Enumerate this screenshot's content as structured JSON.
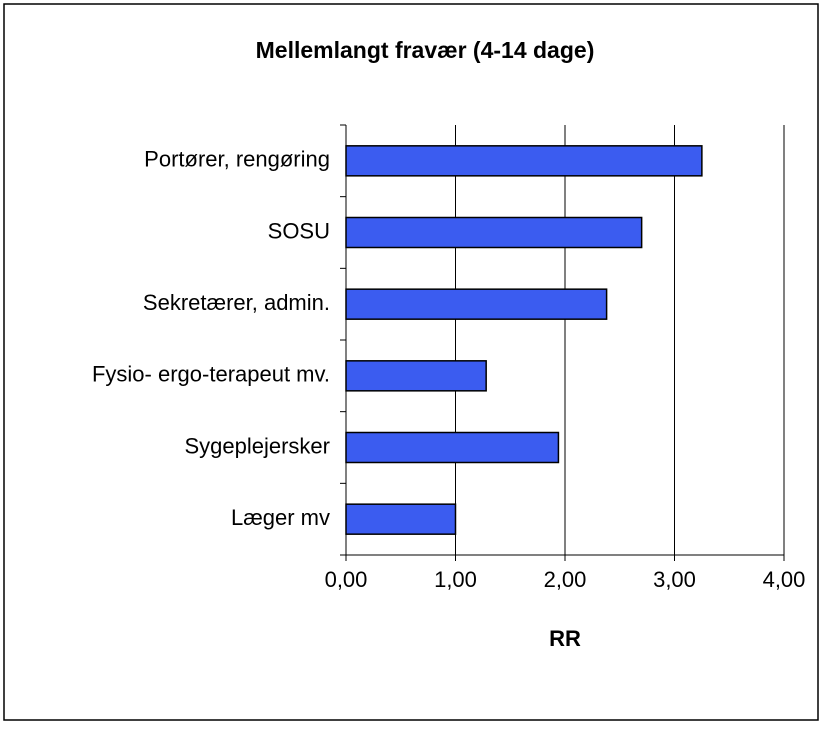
{
  "chart_data": {
    "type": "barh",
    "title": "Mellemlangt fravær (4-14 dage)",
    "x_label": "RR",
    "categories": [
      "Portører, rengøring",
      "SOSU",
      "Sekretærer, admin.",
      "Fysio- ergo-terapeut mv.",
      "Sygeplejersker",
      "Læger mv"
    ],
    "values": [
      3.25,
      2.7,
      2.38,
      1.28,
      1.94,
      1.0
    ],
    "color": "#3b5cf0",
    "xlim": [
      0,
      4
    ],
    "xticks": [
      {
        "value": 0,
        "label": "0,00"
      },
      {
        "value": 1,
        "label": "1,00"
      },
      {
        "value": 2,
        "label": "2,00"
      },
      {
        "value": 3,
        "label": "3,00"
      },
      {
        "value": 4,
        "label": "4,00"
      }
    ],
    "grid": true
  }
}
